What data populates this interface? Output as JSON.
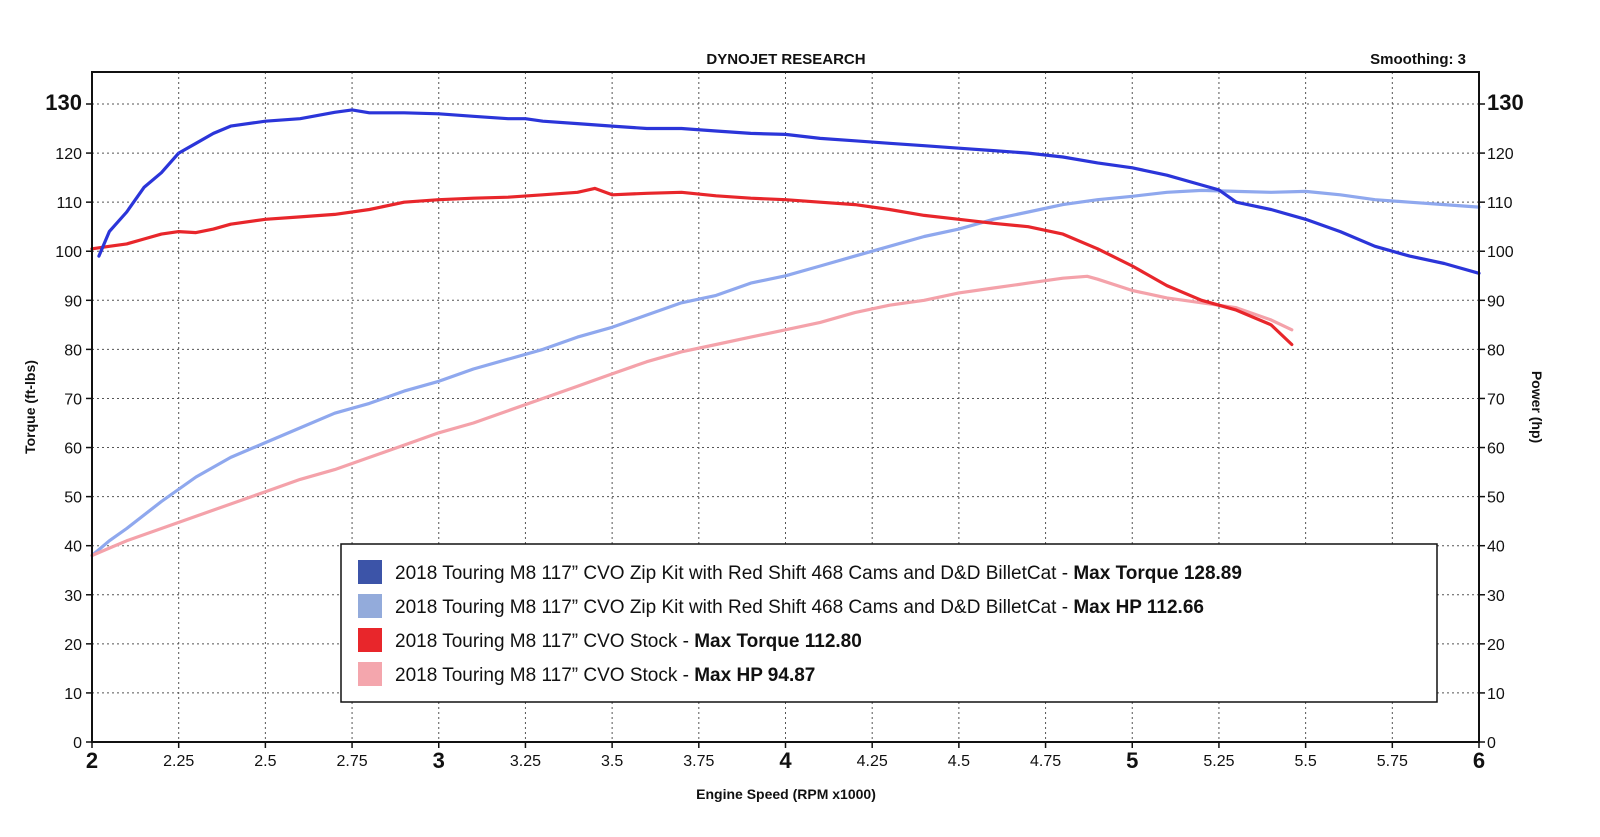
{
  "chart_data": {
    "type": "line",
    "title": "DYNOJET RESEARCH",
    "smoothing_label": "Smoothing: 3",
    "xlabel": "Engine Speed (RPM x1000)",
    "ylabel_left": "Torque (ft-lbs)",
    "ylabel_right": "Power (hp)",
    "xlim": [
      2,
      6
    ],
    "ylim": [
      0,
      130
    ],
    "x_ticks": [
      "2",
      "2.25",
      "2.5",
      "2.75",
      "3",
      "3.25",
      "3.5",
      "3.75",
      "4",
      "4.25",
      "4.5",
      "4.75",
      "5",
      "5.25",
      "5.5",
      "5.75",
      "6"
    ],
    "x_major_ticks": [
      "2",
      "3",
      "4",
      "5",
      "6"
    ],
    "y_ticks": [
      "0",
      "10",
      "20",
      "30",
      "40",
      "50",
      "60",
      "70",
      "80",
      "90",
      "100",
      "110",
      "120",
      "130"
    ],
    "grid": true,
    "legend_position": "bottom-center",
    "series": [
      {
        "name": "2018 Touring M8 117” CVO Zip Kit with Red Shift 468 Cams and D&D BilletCat",
        "legend_suffix": "Max Torque 128.89",
        "color": "#2b35d9",
        "swatch": "#3c54a8",
        "x": [
          2.02,
          2.05,
          2.1,
          2.15,
          2.2,
          2.25,
          2.3,
          2.35,
          2.4,
          2.5,
          2.6,
          2.7,
          2.75,
          2.8,
          2.9,
          3.0,
          3.1,
          3.2,
          3.25,
          3.3,
          3.4,
          3.5,
          3.6,
          3.7,
          3.8,
          3.9,
          4.0,
          4.1,
          4.2,
          4.3,
          4.4,
          4.5,
          4.6,
          4.7,
          4.8,
          4.9,
          5.0,
          5.1,
          5.2,
          5.25,
          5.3,
          5.4,
          5.5,
          5.6,
          5.7,
          5.8,
          5.9,
          6.0
        ],
        "values": [
          99,
          104,
          108,
          113,
          116,
          120,
          122,
          124,
          125.5,
          126.5,
          127,
          128.3,
          128.8,
          128.2,
          128.2,
          128,
          127.5,
          127,
          127,
          126.5,
          126,
          125.5,
          125,
          125,
          124.5,
          124,
          123.8,
          123,
          122.5,
          122,
          121.5,
          121,
          120.5,
          120,
          119.2,
          118,
          117,
          115.5,
          113.5,
          112.5,
          110,
          108.5,
          106.5,
          104,
          101,
          99,
          97.5,
          95.5
        ]
      },
      {
        "name": "2018 Touring M8 117” CVO Zip Kit with Red Shift 468 Cams and D&D BilletCat",
        "legend_suffix": "Max HP 112.66",
        "color": "#8fa8ee",
        "swatch": "#93abdb",
        "x": [
          2.0,
          2.05,
          2.1,
          2.2,
          2.3,
          2.4,
          2.5,
          2.6,
          2.7,
          2.8,
          2.9,
          3.0,
          3.1,
          3.2,
          3.3,
          3.4,
          3.5,
          3.6,
          3.7,
          3.8,
          3.9,
          4.0,
          4.1,
          4.2,
          4.3,
          4.4,
          4.5,
          4.6,
          4.7,
          4.8,
          4.9,
          5.0,
          5.1,
          5.2,
          5.3,
          5.4,
          5.5,
          5.6,
          5.7,
          5.8,
          5.9,
          6.0
        ],
        "values": [
          38,
          41,
          43.5,
          49,
          54,
          58,
          61,
          64,
          67,
          69,
          71.5,
          73.5,
          76,
          78,
          80,
          82.5,
          84.5,
          87,
          89.5,
          91,
          93.5,
          95,
          97,
          99,
          101,
          103,
          104.5,
          106.5,
          108,
          109.5,
          110.5,
          111.2,
          112,
          112.4,
          112.2,
          112,
          112.2,
          111.5,
          110.5,
          110,
          109.5,
          109
        ]
      },
      {
        "name": "2018 Touring M8 117” CVO Stock",
        "legend_suffix": "Max Torque 112.80",
        "color": "#e8262b",
        "swatch": "#e8262b",
        "x": [
          2.0,
          2.05,
          2.1,
          2.15,
          2.2,
          2.25,
          2.3,
          2.35,
          2.4,
          2.5,
          2.6,
          2.7,
          2.8,
          2.9,
          3.0,
          3.1,
          3.2,
          3.3,
          3.4,
          3.45,
          3.5,
          3.6,
          3.7,
          3.8,
          3.9,
          4.0,
          4.1,
          4.2,
          4.3,
          4.4,
          4.5,
          4.6,
          4.7,
          4.8,
          4.9,
          5.0,
          5.1,
          5.2,
          5.3,
          5.4,
          5.46
        ],
        "values": [
          100.5,
          101,
          101.5,
          102.5,
          103.5,
          104,
          103.8,
          104.5,
          105.5,
          106.5,
          107,
          107.5,
          108.5,
          110,
          110.5,
          110.8,
          111,
          111.5,
          112,
          112.8,
          111.5,
          111.8,
          112,
          111.3,
          110.8,
          110.5,
          110,
          109.5,
          108.5,
          107.3,
          106.5,
          105.7,
          105,
          103.5,
          100.5,
          97,
          93,
          90,
          88,
          85,
          81
        ]
      },
      {
        "name": "2018 Touring M8 117” CVO Stock",
        "legend_suffix": "Max HP 94.87",
        "color": "#f4a2aa",
        "swatch": "#f4a6ad",
        "x": [
          2.0,
          2.05,
          2.1,
          2.2,
          2.3,
          2.4,
          2.5,
          2.6,
          2.7,
          2.8,
          2.9,
          3.0,
          3.1,
          3.2,
          3.3,
          3.4,
          3.5,
          3.6,
          3.7,
          3.8,
          3.9,
          4.0,
          4.1,
          4.2,
          4.3,
          4.4,
          4.5,
          4.6,
          4.7,
          4.8,
          4.87,
          4.9,
          5.0,
          5.1,
          5.2,
          5.3,
          5.4,
          5.46
        ],
        "values": [
          38,
          39.5,
          41,
          43.5,
          46,
          48.5,
          51,
          53.5,
          55.5,
          58,
          60.5,
          63,
          65,
          67.5,
          70,
          72.5,
          75,
          77.5,
          79.5,
          81,
          82.5,
          84,
          85.5,
          87.5,
          89,
          90,
          91.5,
          92.5,
          93.5,
          94.5,
          94.9,
          94.3,
          92,
          90.5,
          89.5,
          88.5,
          86,
          84
        ]
      }
    ]
  }
}
